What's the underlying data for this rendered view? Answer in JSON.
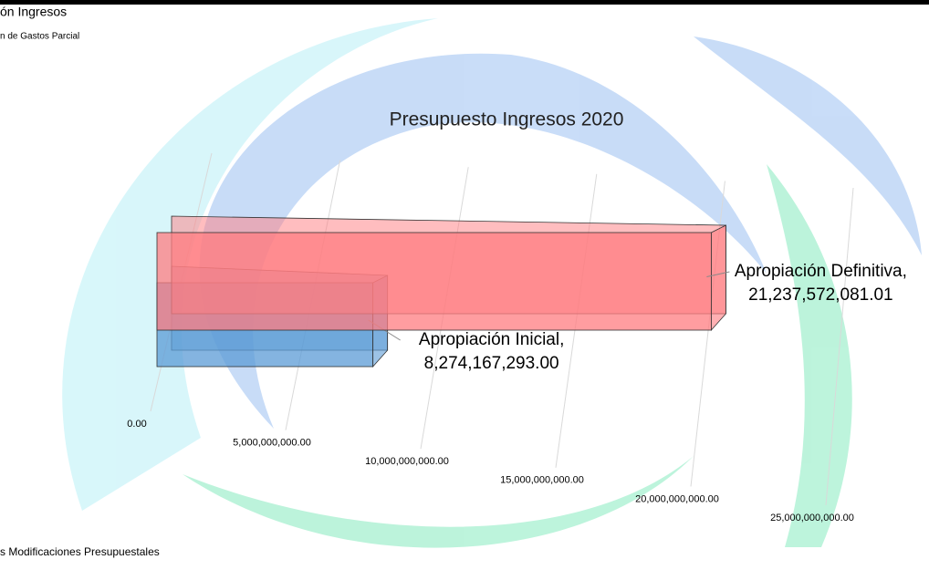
{
  "page": {
    "top_title": "ón Ingresos",
    "top_subtitle": "n de Gastos Parcial",
    "bottom_text": "s Modificaciones Presupuestales"
  },
  "chart_data": {
    "type": "bar3d",
    "orientation": "horizontal",
    "title": "Presupuesto Ingresos 2020",
    "categories": [
      "Apropiación Inicial,",
      "Apropiación Definitiva,"
    ],
    "values": [
      8274167293.0,
      21237572081.01
    ],
    "value_labels": [
      "8,274,167,293.00",
      "21,237,572,081.01"
    ],
    "colors": [
      "#5b9bd5",
      "#ff7c80"
    ],
    "xlim": [
      0,
      25000000000
    ],
    "xticks": [
      {
        "value": 0,
        "label": "0.00"
      },
      {
        "value": 5000000000,
        "label": "5,000,000,000.00"
      },
      {
        "value": 10000000000,
        "label": "10,000,000,000.00"
      },
      {
        "value": 15000000000,
        "label": "15,000,000,000.00"
      },
      {
        "value": 20000000000,
        "label": "20,000,000,000.00"
      },
      {
        "value": 25000000000,
        "label": "25,000,000,000.00"
      }
    ],
    "grid": true
  }
}
